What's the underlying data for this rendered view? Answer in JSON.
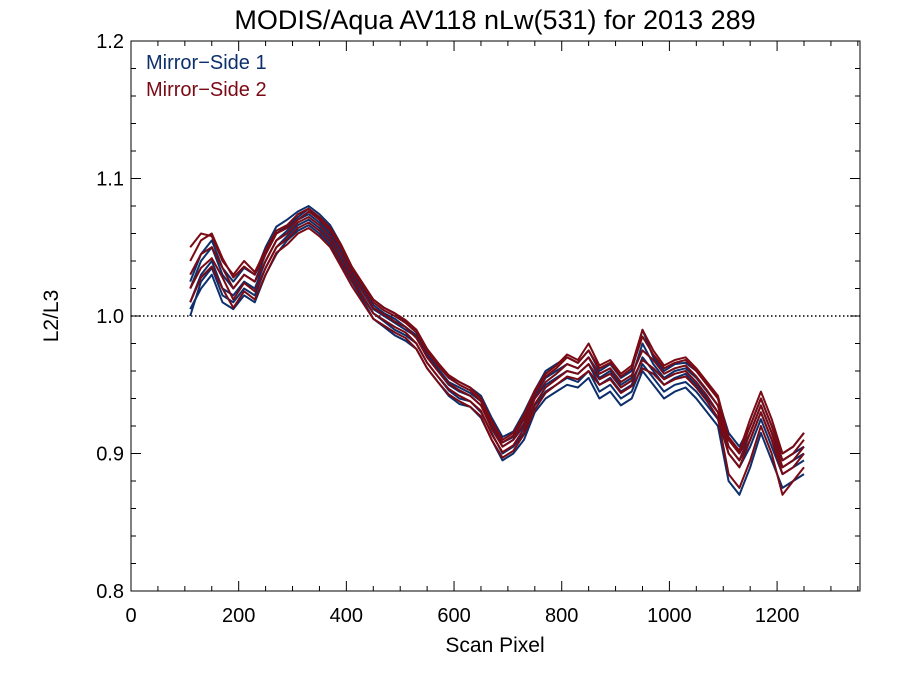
{
  "chart_data": {
    "type": "line",
    "title": "MODIS/Aqua AV118 nLw(531) for 2013 289",
    "xlabel": "Scan Pixel",
    "ylabel": "L2/L3",
    "xlim": [
      0,
      1354
    ],
    "ylim": [
      0.8,
      1.2
    ],
    "xticks": [
      "0",
      "200",
      "400",
      "600",
      "800",
      "1000",
      "1200"
    ],
    "yticks": [
      "0.8",
      "0.9",
      "1.0",
      "1.1",
      "1.2"
    ],
    "x_minor_step": 50,
    "y_minor_step": 0.02,
    "reference_line": 1.0,
    "grid": false,
    "legend_position": "top-left",
    "colors": {
      "mirror_side_1": "#0d2f6b",
      "mirror_side_2": "#7a0a14"
    },
    "x": [
      110,
      130,
      150,
      170,
      190,
      210,
      230,
      250,
      270,
      290,
      310,
      330,
      350,
      370,
      390,
      410,
      430,
      450,
      470,
      490,
      510,
      530,
      550,
      570,
      590,
      610,
      630,
      650,
      670,
      690,
      710,
      730,
      750,
      770,
      790,
      810,
      830,
      850,
      870,
      890,
      910,
      930,
      950,
      970,
      990,
      1010,
      1030,
      1050,
      1070,
      1090,
      1110,
      1130,
      1150,
      1170,
      1190,
      1210,
      1230,
      1250
    ],
    "series": [
      {
        "name": "Mirror-Side 1",
        "values": [
          1.01,
          1.03,
          1.04,
          1.02,
          1.015,
          1.025,
          1.02,
          1.04,
          1.055,
          1.062,
          1.07,
          1.074,
          1.068,
          1.06,
          1.045,
          1.03,
          1.018,
          1.005,
          1.0,
          0.995,
          0.99,
          0.985,
          0.97,
          0.96,
          0.95,
          0.945,
          0.942,
          0.935,
          0.92,
          0.905,
          0.91,
          0.92,
          0.94,
          0.95,
          0.955,
          0.96,
          0.958,
          0.965,
          0.95,
          0.955,
          0.945,
          0.95,
          0.97,
          0.96,
          0.95,
          0.955,
          0.958,
          0.95,
          0.94,
          0.93,
          0.905,
          0.895,
          0.91,
          0.93,
          0.91,
          0.89,
          0.895,
          0.9
        ]
      },
      {
        "name": "Mirror-Side 1",
        "values": [
          1.02,
          1.04,
          1.05,
          1.03,
          1.02,
          1.03,
          1.025,
          1.045,
          1.06,
          1.065,
          1.072,
          1.078,
          1.07,
          1.062,
          1.048,
          1.032,
          1.02,
          1.008,
          1.002,
          0.998,
          0.992,
          0.986,
          0.972,
          0.962,
          0.952,
          0.948,
          0.944,
          0.938,
          0.922,
          0.908,
          0.912,
          0.925,
          0.942,
          0.955,
          0.96,
          0.965,
          0.962,
          0.97,
          0.955,
          0.96,
          0.95,
          0.955,
          0.98,
          0.965,
          0.955,
          0.96,
          0.962,
          0.955,
          0.945,
          0.935,
          0.91,
          0.9,
          0.915,
          0.935,
          0.915,
          0.895,
          0.9,
          0.905
        ]
      },
      {
        "name": "Mirror-Side 1",
        "values": [
          1.0,
          1.025,
          1.035,
          1.015,
          1.01,
          1.02,
          1.015,
          1.035,
          1.05,
          1.058,
          1.066,
          1.07,
          1.064,
          1.056,
          1.042,
          1.028,
          1.015,
          1.002,
          0.996,
          0.99,
          0.986,
          0.98,
          0.966,
          0.956,
          0.946,
          0.94,
          0.938,
          0.93,
          0.915,
          0.9,
          0.905,
          0.915,
          0.935,
          0.945,
          0.95,
          0.955,
          0.952,
          0.96,
          0.945,
          0.95,
          0.94,
          0.945,
          0.965,
          0.955,
          0.945,
          0.95,
          0.952,
          0.945,
          0.935,
          0.925,
          0.9,
          0.89,
          0.905,
          0.925,
          0.905,
          0.885,
          0.89,
          0.895
        ]
      },
      {
        "name": "Mirror-Side 1",
        "values": [
          1.025,
          1.045,
          1.055,
          1.035,
          1.025,
          1.035,
          1.03,
          1.05,
          1.065,
          1.07,
          1.076,
          1.08,
          1.074,
          1.066,
          1.052,
          1.036,
          1.024,
          1.012,
          1.006,
          1.002,
          0.996,
          0.99,
          0.976,
          0.966,
          0.956,
          0.952,
          0.948,
          0.942,
          0.926,
          0.912,
          0.916,
          0.93,
          0.946,
          0.96,
          0.965,
          0.97,
          0.966,
          0.975,
          0.96,
          0.965,
          0.955,
          0.96,
          0.99,
          0.97,
          0.96,
          0.965,
          0.966,
          0.96,
          0.95,
          0.94,
          0.915,
          0.905,
          0.92,
          0.94,
          0.92,
          0.9,
          0.905,
          0.915
        ]
      },
      {
        "name": "Mirror-Side 1",
        "values": [
          1.005,
          1.02,
          1.03,
          1.01,
          1.005,
          1.015,
          1.01,
          1.03,
          1.045,
          1.055,
          1.062,
          1.066,
          1.06,
          1.052,
          1.038,
          1.025,
          1.012,
          0.998,
          0.992,
          0.986,
          0.982,
          0.976,
          0.962,
          0.952,
          0.942,
          0.936,
          0.934,
          0.926,
          0.91,
          0.895,
          0.9,
          0.91,
          0.93,
          0.94,
          0.945,
          0.95,
          0.948,
          0.955,
          0.94,
          0.945,
          0.935,
          0.94,
          0.96,
          0.95,
          0.94,
          0.945,
          0.948,
          0.94,
          0.93,
          0.92,
          0.88,
          0.87,
          0.89,
          0.915,
          0.895,
          0.875,
          0.88,
          0.885
        ]
      },
      {
        "name": "Mirror-Side 2",
        "values": [
          1.03,
          1.045,
          1.05,
          1.035,
          1.02,
          1.03,
          1.025,
          1.04,
          1.055,
          1.06,
          1.068,
          1.072,
          1.066,
          1.058,
          1.045,
          1.03,
          1.018,
          1.006,
          1.001,
          0.996,
          0.992,
          0.984,
          0.97,
          0.96,
          0.951,
          0.946,
          0.942,
          0.935,
          0.918,
          0.905,
          0.91,
          0.922,
          0.94,
          0.952,
          0.958,
          0.965,
          0.962,
          0.97,
          0.958,
          0.962,
          0.952,
          0.957,
          0.975,
          0.968,
          0.958,
          0.962,
          0.964,
          0.956,
          0.946,
          0.935,
          0.905,
          0.895,
          0.915,
          0.935,
          0.915,
          0.89,
          0.895,
          0.905
        ]
      },
      {
        "name": "Mirror-Side 2",
        "values": [
          1.04,
          1.055,
          1.06,
          1.042,
          1.028,
          1.036,
          1.03,
          1.045,
          1.06,
          1.064,
          1.07,
          1.076,
          1.07,
          1.062,
          1.05,
          1.034,
          1.022,
          1.01,
          1.004,
          1.0,
          0.995,
          0.988,
          0.974,
          0.964,
          0.955,
          0.95,
          0.946,
          0.938,
          0.922,
          0.908,
          0.913,
          0.926,
          0.944,
          0.956,
          0.962,
          0.97,
          0.966,
          0.975,
          0.962,
          0.966,
          0.956,
          0.962,
          0.985,
          0.972,
          0.962,
          0.966,
          0.968,
          0.96,
          0.95,
          0.94,
          0.91,
          0.9,
          0.92,
          0.94,
          0.92,
          0.895,
          0.9,
          0.91
        ]
      },
      {
        "name": "Mirror-Side 2",
        "values": [
          1.02,
          1.035,
          1.042,
          1.028,
          1.012,
          1.024,
          1.018,
          1.035,
          1.05,
          1.056,
          1.064,
          1.068,
          1.062,
          1.054,
          1.04,
          1.026,
          1.014,
          1.002,
          0.997,
          0.992,
          0.988,
          0.98,
          0.966,
          0.956,
          0.947,
          0.942,
          0.938,
          0.931,
          0.914,
          0.901,
          0.906,
          0.918,
          0.936,
          0.948,
          0.954,
          0.96,
          0.958,
          0.965,
          0.954,
          0.958,
          0.948,
          0.953,
          0.968,
          0.962,
          0.954,
          0.958,
          0.96,
          0.952,
          0.942,
          0.93,
          0.9,
          0.89,
          0.91,
          0.93,
          0.91,
          0.885,
          0.89,
          0.9
        ]
      },
      {
        "name": "Mirror-Side 2",
        "values": [
          1.05,
          1.06,
          1.058,
          1.04,
          1.03,
          1.04,
          1.032,
          1.048,
          1.062,
          1.066,
          1.074,
          1.078,
          1.072,
          1.064,
          1.052,
          1.036,
          1.024,
          1.012,
          1.006,
          1.002,
          0.997,
          0.99,
          0.976,
          0.966,
          0.957,
          0.952,
          0.948,
          0.94,
          0.924,
          0.91,
          0.915,
          0.928,
          0.946,
          0.958,
          0.964,
          0.972,
          0.968,
          0.98,
          0.964,
          0.968,
          0.958,
          0.964,
          0.99,
          0.975,
          0.964,
          0.968,
          0.97,
          0.962,
          0.952,
          0.942,
          0.912,
          0.902,
          0.925,
          0.945,
          0.925,
          0.9,
          0.905,
          0.915
        ]
      },
      {
        "name": "Mirror-Side 2",
        "values": [
          1.01,
          1.028,
          1.036,
          1.02,
          1.006,
          1.018,
          1.012,
          1.03,
          1.046,
          1.052,
          1.06,
          1.064,
          1.058,
          1.05,
          1.036,
          1.022,
          1.01,
          0.998,
          0.993,
          0.988,
          0.984,
          0.976,
          0.962,
          0.952,
          0.943,
          0.938,
          0.934,
          0.927,
          0.91,
          0.897,
          0.902,
          0.914,
          0.932,
          0.944,
          0.95,
          0.956,
          0.954,
          0.96,
          0.95,
          0.954,
          0.944,
          0.949,
          0.962,
          0.958,
          0.95,
          0.954,
          0.956,
          0.948,
          0.938,
          0.926,
          0.885,
          0.875,
          0.895,
          0.92,
          0.9,
          0.87,
          0.88,
          0.89
        ]
      }
    ]
  },
  "legend": {
    "mirror_side_1": "Mirror−Side 1",
    "mirror_side_2": "Mirror−Side 2"
  }
}
